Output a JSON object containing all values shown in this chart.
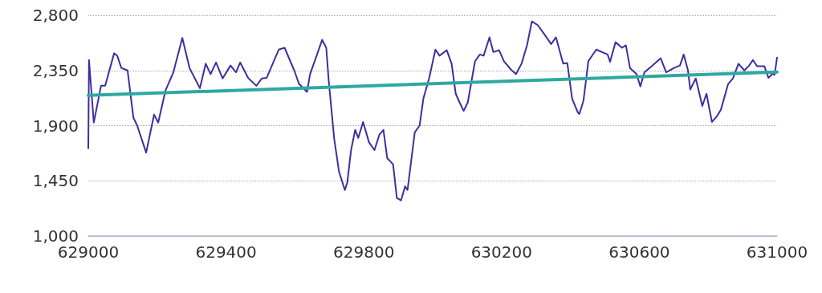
{
  "chart_data": {
    "type": "line",
    "xlim": [
      629000,
      631000
    ],
    "xticks": [
      629000,
      629400,
      629800,
      630200,
      630600,
      631000
    ],
    "ylim": [
      1000,
      2800
    ],
    "yticks": [
      {
        "value": 1000,
        "label": "1,000"
      },
      {
        "value": 1450,
        "label": "1,450"
      },
      {
        "value": 1900,
        "label": "1,900"
      },
      {
        "value": 2350,
        "label": "2,350"
      },
      {
        "value": 2800,
        "label": "2,800"
      }
    ],
    "grid": "y",
    "marker": "none",
    "line_style": "solid",
    "series": [
      {
        "color": "#3f2ea0",
        "x": [
          629000,
          629002,
          629016,
          629037,
          629049,
          629075,
          629084,
          629096,
          629114,
          629131,
          629142,
          629168,
          629191,
          629203,
          629224,
          629247,
          629273,
          629294,
          629324,
          629341,
          629355,
          629371,
          629390,
          629413,
          629429,
          629441,
          629464,
          629488,
          629504,
          629518,
          629553,
          629570,
          629598,
          629612,
          629635,
          629644,
          629663,
          629679,
          629691,
          629698,
          629714,
          629728,
          629745,
          629752,
          629763,
          629775,
          629784,
          629798,
          629815,
          629831,
          629845,
          629857,
          629868,
          629885,
          629896,
          629908,
          629920,
          629927,
          629948,
          629962,
          629973,
          629990,
          630008,
          630020,
          630041,
          630055,
          630067,
          630078,
          630090,
          630102,
          630123,
          630137,
          630148,
          630165,
          630176,
          630193,
          630207,
          630228,
          630242,
          630258,
          630274,
          630288,
          630305,
          630323,
          630344,
          630358,
          630379,
          630391,
          630405,
          630421,
          630426,
          630438,
          630452,
          630475,
          630508,
          630515,
          630531,
          630550,
          630561,
          630573,
          630592,
          630603,
          630615,
          630638,
          630662,
          630678,
          630701,
          630718,
          630729,
          630741,
          630748,
          630764,
          630783,
          630795,
          630811,
          630825,
          630837,
          630858,
          630872,
          630888,
          630905,
          630919,
          630930,
          630942,
          630963,
          630975,
          630986,
          630993,
          631000
        ],
        "values": [
          1715,
          2435,
          1925,
          2225,
          2225,
          2490,
          2470,
          2370,
          2350,
          1965,
          1900,
          1680,
          1990,
          1925,
          2185,
          2335,
          2615,
          2370,
          2205,
          2405,
          2320,
          2415,
          2285,
          2390,
          2335,
          2415,
          2290,
          2225,
          2285,
          2290,
          2520,
          2535,
          2350,
          2240,
          2175,
          2320,
          2470,
          2600,
          2535,
          2270,
          1795,
          1525,
          1375,
          1435,
          1700,
          1865,
          1800,
          1930,
          1765,
          1700,
          1825,
          1865,
          1635,
          1585,
          1310,
          1290,
          1405,
          1375,
          1845,
          1900,
          2120,
          2290,
          2520,
          2470,
          2515,
          2405,
          2160,
          2090,
          2020,
          2090,
          2425,
          2480,
          2470,
          2620,
          2500,
          2515,
          2425,
          2355,
          2320,
          2405,
          2555,
          2750,
          2720,
          2650,
          2565,
          2620,
          2405,
          2410,
          2120,
          2010,
          1995,
          2105,
          2425,
          2520,
          2480,
          2420,
          2580,
          2535,
          2555,
          2370,
          2320,
          2220,
          2335,
          2390,
          2450,
          2335,
          2370,
          2390,
          2480,
          2355,
          2195,
          2285,
          2060,
          2160,
          1930,
          1975,
          2030,
          2240,
          2285,
          2405,
          2350,
          2390,
          2435,
          2385,
          2385,
          2290,
          2320,
          2315,
          2455
        ]
      },
      {
        "type": "line",
        "color": "#2fa8a2",
        "x": [
          629000,
          631000
        ],
        "values": [
          2147,
          2337
        ]
      }
    ]
  }
}
